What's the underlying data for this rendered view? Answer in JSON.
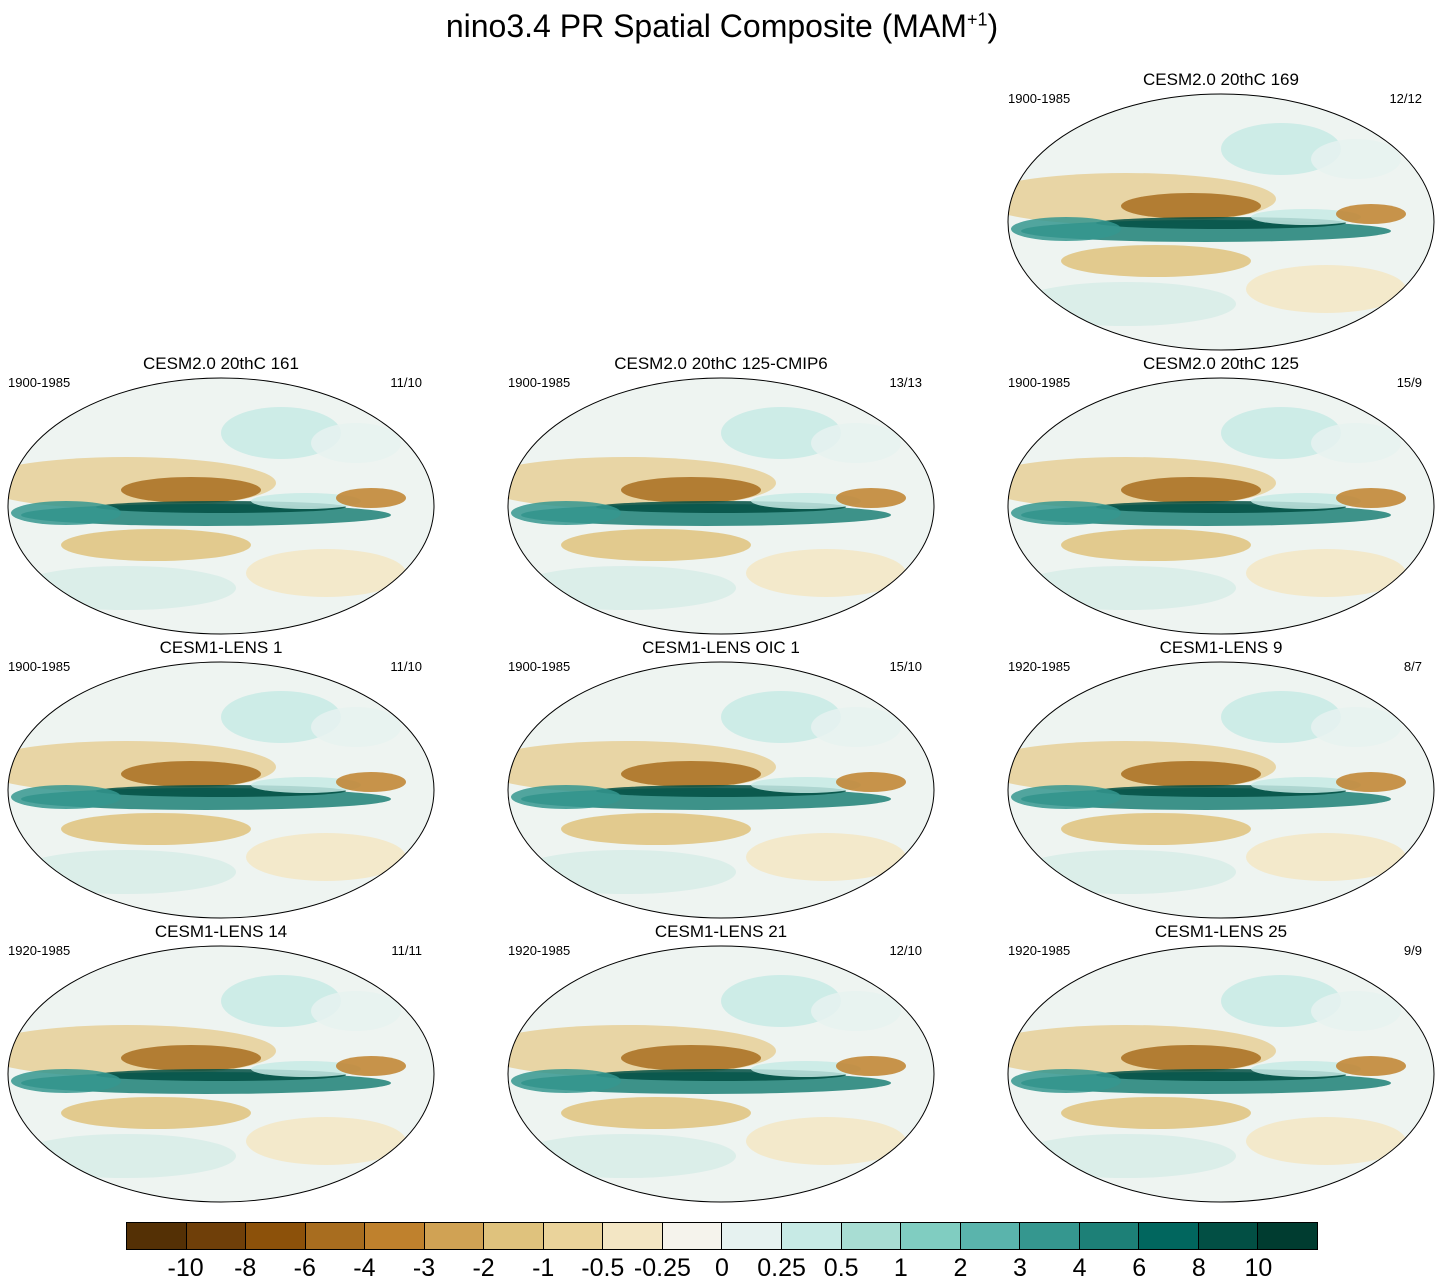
{
  "title": {
    "main": "nino3.4 PR Spatial Composite (MAM",
    "sup": "+1",
    "close": ")"
  },
  "panels": [
    {
      "title": "CESM2.0 20thC 169",
      "period": "1900-1985",
      "count": "12/12"
    },
    {
      "title": "CESM2.0 20thC 161",
      "period": "1900-1985",
      "count": "11/10"
    },
    {
      "title": "CESM2.0 20thC 125-CMIP6",
      "period": "1900-1985",
      "count": "13/13"
    },
    {
      "title": "CESM2.0 20thC 125",
      "period": "1900-1985",
      "count": "15/9"
    },
    {
      "title": "CESM1-LENS 1",
      "period": "1900-1985",
      "count": "11/10"
    },
    {
      "title": "CESM1-LENS OIC 1",
      "period": "1900-1985",
      "count": "15/10"
    },
    {
      "title": "CESM1-LENS 9",
      "period": "1920-1985",
      "count": "8/7"
    },
    {
      "title": "CESM1-LENS 14",
      "period": "1920-1985",
      "count": "11/11"
    },
    {
      "title": "CESM1-LENS 21",
      "period": "1920-1985",
      "count": "12/10"
    },
    {
      "title": "CESM1-LENS 25",
      "period": "1920-1985",
      "count": "9/9"
    }
  ],
  "colorbar": {
    "colors": [
      "#543005",
      "#6f3f09",
      "#8c510a",
      "#a86d1f",
      "#bf812d",
      "#d0a254",
      "#dfc27d",
      "#ead39b",
      "#f3e6c4",
      "#f5f3ec",
      "#e6f2f0",
      "#c7eae5",
      "#a8ddd3",
      "#80cdc1",
      "#5ab4ac",
      "#35978f",
      "#1d8077",
      "#01665e",
      "#024f44",
      "#003c30"
    ],
    "labels": [
      "-10",
      "-8",
      "-6",
      "-4",
      "-3",
      "-2",
      "-1",
      "-0.5",
      "-0.25",
      "0",
      "0.25",
      "0.5",
      "1",
      "2",
      "3",
      "4",
      "6",
      "8",
      "10"
    ]
  }
}
